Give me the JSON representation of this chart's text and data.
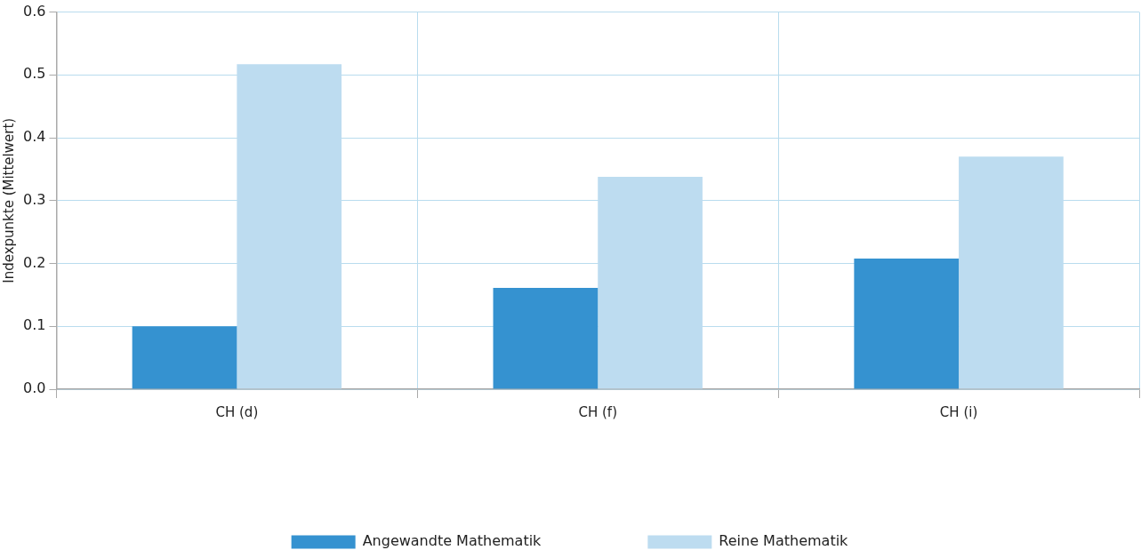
{
  "chart_data": {
    "type": "bar",
    "ylabel": "Indexpunkte (Mittelwert)",
    "categories": [
      "CH (d)",
      "CH (f)",
      "CH (i)"
    ],
    "series": [
      {
        "name": "Angewandte Mathematik",
        "color": "#3592d0",
        "values": [
          0.1,
          0.161,
          0.208
        ]
      },
      {
        "name": "Reine Mathematik",
        "color": "#bddcf0",
        "values": [
          0.517,
          0.338,
          0.37
        ]
      }
    ],
    "ylim": [
      0,
      0.6
    ],
    "yticks": [
      {
        "value": 0,
        "label": "0.0"
      },
      {
        "value": 0.1,
        "label": "0.1"
      },
      {
        "value": 0.2,
        "label": "0.2"
      },
      {
        "value": 0.3,
        "label": "0.3"
      },
      {
        "value": 0.4,
        "label": "0.4"
      },
      {
        "value": 0.5,
        "label": "0.5"
      },
      {
        "value": 0.6,
        "label": "0.6"
      }
    ],
    "grid": true,
    "legend": "bottom"
  }
}
